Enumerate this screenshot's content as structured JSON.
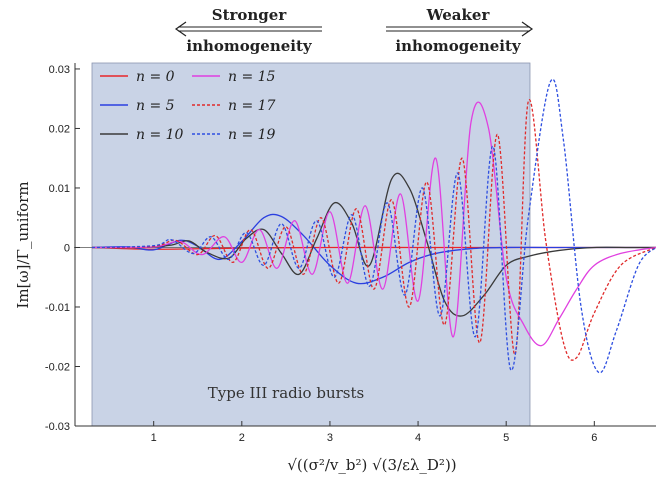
{
  "chart_data": {
    "type": "line",
    "xlabel": "√((σ²/v_b²) √(3/ελ_D²))",
    "ylabel": "Im[ω]/Γ_uniform",
    "xlim": [
      0.3,
      6.7
    ],
    "ylim": [
      -0.03,
      0.031
    ],
    "x_ticks": [
      "1",
      "2",
      "3",
      "4",
      "5",
      "6"
    ],
    "y_ticks": [
      "0.03",
      "0.02",
      "0.01",
      "0",
      "-0.01",
      "-0.02",
      "-0.03"
    ],
    "grid": false,
    "legend_position": "top-left",
    "series": [
      {
        "name": "n = 0",
        "color": "#e8262a",
        "dash": "solid",
        "x": [
          0.3,
          1,
          2,
          3,
          4,
          5,
          6,
          6.7
        ],
        "y": [
          0,
          -0.0003,
          -0.0001,
          0,
          0,
          0,
          0,
          0
        ]
      },
      {
        "name": "n = 5",
        "color": "#2b3fe0",
        "dash": "solid",
        "x": [
          0.3,
          0.7,
          1.0,
          1.3,
          1.5,
          1.75,
          2.0,
          2.25,
          2.45,
          2.7,
          3.0,
          3.3,
          3.6,
          3.9,
          4.2,
          4.6,
          5.0,
          5.5,
          6.0,
          6.7
        ],
        "y": [
          0,
          0.0001,
          -0.0004,
          0.0012,
          0.0002,
          -0.002,
          0.001,
          0.005,
          0.0052,
          0.002,
          -0.003,
          -0.006,
          -0.005,
          -0.0025,
          -0.001,
          -0.0002,
          0,
          0,
          0,
          0
        ]
      },
      {
        "name": "n = 10",
        "color": "#3a3a3a",
        "dash": "solid",
        "x": [
          0.3,
          0.9,
          1.2,
          1.4,
          1.6,
          1.85,
          2.05,
          2.25,
          2.45,
          2.65,
          2.85,
          3.05,
          3.25,
          3.45,
          3.7,
          3.9,
          4.1,
          4.3,
          4.5,
          4.75,
          5.0,
          5.25,
          5.6,
          6.0,
          6.4,
          6.7
        ],
        "y": [
          0,
          0,
          0.0004,
          0.0011,
          -0.0008,
          -0.0018,
          0.0015,
          0.003,
          -0.001,
          -0.0045,
          0.0015,
          0.0075,
          0.004,
          -0.003,
          0.0115,
          0.01,
          0.001,
          -0.009,
          -0.0115,
          -0.008,
          -0.003,
          -0.0015,
          -0.0005,
          0,
          0,
          0
        ]
      },
      {
        "name": "n = 15",
        "color": "#e040e0",
        "dash": "solid",
        "x": [
          0.3,
          1.0,
          1.3,
          1.55,
          1.8,
          2.0,
          2.2,
          2.4,
          2.6,
          2.8,
          3.0,
          3.2,
          3.4,
          3.6,
          3.8,
          4.0,
          4.2,
          4.4,
          4.6,
          4.8,
          5.0,
          5.2,
          5.4,
          5.6,
          5.8,
          6.0,
          6.3,
          6.7
        ],
        "y": [
          0,
          0.0001,
          0.001,
          -0.0012,
          0.0018,
          -0.0025,
          0.003,
          -0.0035,
          0.0045,
          -0.0045,
          0.006,
          -0.006,
          0.007,
          -0.007,
          0.009,
          -0.009,
          0.015,
          -0.015,
          0.021,
          0.02,
          -0.005,
          -0.013,
          -0.0165,
          -0.012,
          -0.007,
          -0.003,
          -0.001,
          0
        ]
      },
      {
        "name": "n = 17",
        "color": "#e02a2a",
        "dash": "dashed",
        "x": [
          0.3,
          1.0,
          1.25,
          1.5,
          1.7,
          1.9,
          2.1,
          2.3,
          2.5,
          2.7,
          2.9,
          3.1,
          3.3,
          3.5,
          3.7,
          3.9,
          4.1,
          4.3,
          4.5,
          4.7,
          4.9,
          5.1,
          5.25,
          5.45,
          5.65,
          5.8,
          6.0,
          6.3,
          6.7
        ],
        "y": [
          0,
          0.0002,
          0.0012,
          -0.0012,
          0.002,
          -0.0025,
          0.003,
          -0.0035,
          0.0035,
          -0.0045,
          0.005,
          -0.006,
          0.0065,
          -0.007,
          0.008,
          -0.01,
          0.011,
          -0.013,
          0.015,
          -0.016,
          0.019,
          -0.018,
          0.0245,
          0.001,
          -0.016,
          -0.0185,
          -0.011,
          -0.003,
          0
        ]
      },
      {
        "name": "n = 19",
        "color": "#2d4ee0",
        "dash": "dashed",
        "x": [
          0.3,
          1.0,
          1.2,
          1.45,
          1.65,
          1.85,
          2.05,
          2.25,
          2.45,
          2.65,
          2.85,
          3.05,
          3.25,
          3.45,
          3.65,
          3.85,
          4.05,
          4.25,
          4.45,
          4.65,
          4.85,
          5.05,
          5.25,
          5.5,
          5.65,
          5.85,
          6.05,
          6.25,
          6.5,
          6.7
        ],
        "y": [
          0,
          0.0003,
          0.0013,
          -0.001,
          0.0018,
          -0.002,
          0.0025,
          -0.003,
          0.004,
          -0.0035,
          0.0045,
          -0.005,
          0.0055,
          -0.0065,
          0.0075,
          -0.008,
          0.01,
          -0.0115,
          0.0125,
          -0.015,
          0.017,
          -0.0205,
          0.005,
          0.0278,
          0.018,
          -0.01,
          -0.021,
          -0.014,
          -0.003,
          0
        ]
      }
    ],
    "annotations": {
      "stronger_top": "Stronger",
      "stronger_bottom": "inhomogeneity",
      "weaker_top": "Weaker",
      "weaker_bottom": "inhomogeneity",
      "region_label": "Type III radio bursts"
    },
    "shaded_region": {
      "x_start": 0.3,
      "x_end": 5.27,
      "color": "#c9d3e6"
    }
  }
}
